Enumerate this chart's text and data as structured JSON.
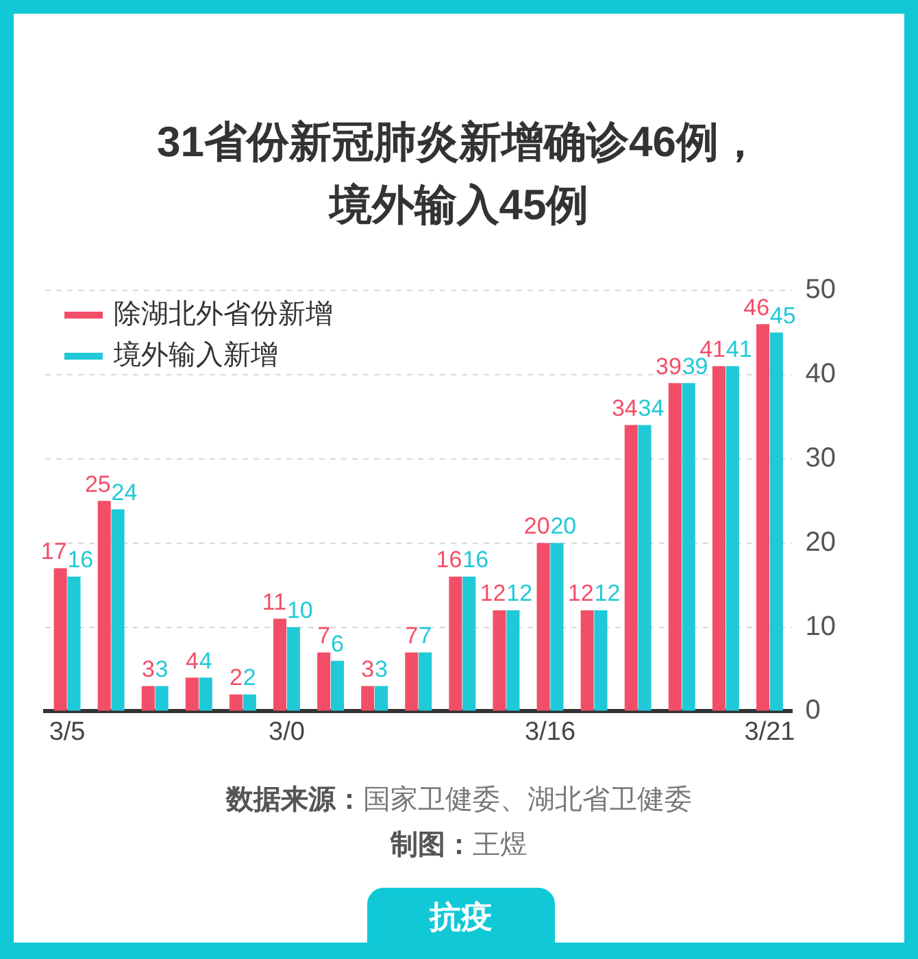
{
  "chart_data": {
    "type": "bar",
    "title": "31省份新冠肺炎新增确诊46例，境外输入45例",
    "categories": [
      "3/5",
      null,
      null,
      null,
      null,
      "3/0",
      null,
      null,
      null,
      null,
      null,
      "3/16",
      null,
      null,
      null,
      null,
      "3/21"
    ],
    "series": [
      {
        "name": "除湖北外省份新增",
        "color": "#f24e68",
        "values": [
          17,
          25,
          3,
          4,
          2,
          11,
          7,
          3,
          7,
          16,
          12,
          20,
          12,
          34,
          39,
          41,
          46
        ]
      },
      {
        "name": "境外输入新增",
        "color": "#1fc9d8",
        "values": [
          16,
          24,
          3,
          4,
          2,
          10,
          6,
          3,
          7,
          16,
          12,
          20,
          12,
          34,
          39,
          41,
          45
        ]
      }
    ],
    "ylim": [
      0,
      50
    ],
    "yticks": [
      0,
      10,
      20,
      30,
      40,
      50
    ],
    "grid": "y",
    "legend": "top left",
    "data_labels": true,
    "annotations": [
      "数据来源：国家卫健委、湖北省卫健委",
      "制图：王煜",
      "抗疫"
    ]
  }
}
